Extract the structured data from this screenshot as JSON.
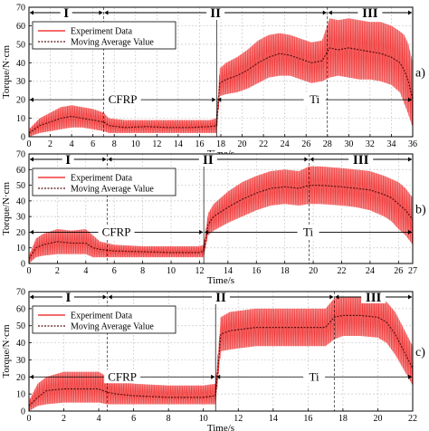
{
  "chart_data": [
    {
      "type": "line",
      "panel_label": "a)",
      "xlabel": "Time/s",
      "ylabel": "Torque/N·cm",
      "xlim": [
        0,
        36
      ],
      "ylim": [
        0,
        70
      ],
      "xticks": [
        0,
        2,
        4,
        6,
        8,
        10,
        12,
        14,
        16,
        18,
        20,
        22,
        24,
        26,
        28,
        30,
        32,
        34,
        36
      ],
      "yticks": [
        0,
        10,
        20,
        30,
        40,
        50,
        60,
        70
      ],
      "grid": true,
      "legend": {
        "position": "upper-left",
        "entries": [
          "Experiment Data",
          "Moving Average Value"
        ]
      },
      "stages": [
        {
          "label": "I",
          "from": 0,
          "to": 7
        },
        {
          "label": "II",
          "from": 7,
          "to": 28
        },
        {
          "label": "III",
          "from": 28,
          "to": 36
        }
      ],
      "materials": [
        {
          "label": "CFRP",
          "from": 0,
          "to": 17.6
        },
        {
          "label": "Ti",
          "from": 17.6,
          "to": 36
        }
      ],
      "series": [
        {
          "name": "Moving Average Value",
          "x": [
            0,
            1,
            2,
            3,
            4,
            5,
            6,
            7,
            7.5,
            9,
            11,
            13,
            15,
            17,
            17.6,
            17.9,
            18.5,
            19.5,
            20.5,
            21.5,
            22.5,
            23.5,
            24.5,
            25.5,
            26.5,
            27.5,
            28.2,
            29,
            30,
            31,
            32,
            33,
            34,
            34.8,
            35.2,
            35.6,
            36
          ],
          "y": [
            2,
            6,
            8,
            10,
            11,
            10,
            9,
            8,
            6,
            5,
            5.5,
            5,
            5,
            5.5,
            6,
            29,
            31,
            33,
            36,
            40,
            43,
            45,
            44,
            42,
            40,
            41,
            48,
            47,
            48,
            47,
            46,
            45,
            43,
            40,
            36,
            30,
            20
          ]
        },
        {
          "name": "Experiment Data",
          "x": [
            0,
            1,
            2,
            3,
            4,
            5,
            6,
            7,
            7.5,
            9,
            11,
            13,
            15,
            17,
            17.6,
            17.9,
            18.5,
            19.5,
            20.5,
            21.5,
            22.5,
            23.5,
            24.5,
            25.5,
            26.5,
            27.5,
            28.2,
            29,
            30,
            31,
            32,
            33,
            34,
            34.8,
            35.2,
            35.6,
            36
          ],
          "ymin": [
            0,
            2,
            3,
            4,
            5,
            5,
            4,
            3,
            2,
            2,
            2,
            2,
            2,
            2,
            2,
            22,
            23,
            24,
            26,
            29,
            32,
            33,
            33,
            31,
            29,
            30,
            32,
            33,
            32,
            31,
            31,
            30,
            28,
            24,
            18,
            12,
            5
          ],
          "ymax": [
            4,
            10,
            13,
            16,
            17,
            16,
            15,
            13,
            10,
            9,
            9,
            9,
            9,
            9,
            10,
            37,
            40,
            43,
            47,
            52,
            55,
            56,
            55,
            53,
            51,
            52,
            64,
            63,
            64,
            63,
            62,
            62,
            60,
            57,
            55,
            50,
            40
          ]
        }
      ]
    },
    {
      "type": "line",
      "panel_label": "b)",
      "xlabel": "Time/s",
      "ylabel": "Torque/N·cm",
      "xlim": [
        0,
        27
      ],
      "ylim": [
        0,
        70
      ],
      "xticks": [
        0,
        2,
        4,
        6,
        8,
        10,
        12,
        14,
        16,
        18,
        20,
        22,
        24,
        26,
        27
      ],
      "yticks": [
        0,
        10,
        20,
        30,
        40,
        50,
        60,
        70
      ],
      "grid": true,
      "legend": {
        "position": "upper-left",
        "entries": [
          "Experiment Data",
          "Moving Average Value"
        ]
      },
      "stages": [
        {
          "label": "I",
          "from": 0,
          "to": 5.5
        },
        {
          "label": "II",
          "from": 5.5,
          "to": 19.7
        },
        {
          "label": "III",
          "from": 19.7,
          "to": 27
        }
      ],
      "materials": [
        {
          "label": "CFRP",
          "from": 0,
          "to": 12.3
        },
        {
          "label": "Ti",
          "from": 12.3,
          "to": 27
        }
      ],
      "series": [
        {
          "name": "Moving Average Value",
          "x": [
            0,
            0.5,
            1,
            2,
            3,
            4,
            4.5,
            5,
            6,
            8,
            10,
            12,
            12.3,
            12.6,
            13,
            14,
            15,
            16,
            17,
            18,
            19,
            19.7,
            20.5,
            22,
            23,
            24,
            25,
            25.5,
            26,
            26.5,
            27
          ],
          "y": [
            3,
            10,
            12,
            14,
            13,
            13,
            10,
            9,
            8,
            7.5,
            7,
            7,
            8,
            25,
            30,
            36,
            41,
            45,
            48,
            49,
            48,
            50,
            50,
            49,
            48,
            47,
            44,
            42,
            38,
            34,
            28
          ]
        },
        {
          "name": "Experiment Data",
          "x": [
            0,
            0.5,
            1,
            2,
            3,
            4,
            4.5,
            5,
            6,
            8,
            10,
            12,
            12.3,
            12.6,
            13,
            14,
            15,
            16,
            17,
            18,
            19,
            19.7,
            20.5,
            22,
            23,
            24,
            25,
            25.5,
            26,
            26.5,
            27
          ],
          "ymin": [
            0,
            4,
            5,
            6,
            6,
            6,
            4,
            4,
            4,
            4,
            4,
            4,
            4,
            18,
            21,
            26,
            30,
            34,
            37,
            38,
            37,
            38,
            38,
            37,
            36,
            34,
            30,
            27,
            22,
            18,
            12
          ],
          "ymax": [
            5,
            16,
            19,
            22,
            21,
            22,
            18,
            14,
            12,
            11,
            11,
            11,
            12,
            32,
            38,
            46,
            52,
            56,
            59,
            60,
            59,
            62,
            62,
            61,
            60,
            59,
            56,
            54,
            52,
            48,
            42
          ]
        }
      ]
    },
    {
      "type": "line",
      "panel_label": "c)",
      "xlabel": "Time/s",
      "ylabel": "Torque/N·cm",
      "xlim": [
        0,
        22
      ],
      "ylim": [
        0,
        70
      ],
      "xticks": [
        0,
        2,
        4,
        6,
        8,
        10,
        12,
        14,
        16,
        18,
        20,
        22
      ],
      "yticks": [
        0,
        10,
        20,
        30,
        40,
        50,
        60,
        70
      ],
      "grid": true,
      "legend": {
        "position": "upper-left",
        "entries": [
          "Experiment Data",
          "Moving Average Value"
        ]
      },
      "stages": [
        {
          "label": "I",
          "from": 0,
          "to": 4.5
        },
        {
          "label": "II",
          "from": 4.5,
          "to": 17.5
        },
        {
          "label": "III",
          "from": 17.5,
          "to": 22
        }
      ],
      "materials": [
        {
          "label": "CFRP",
          "from": 0,
          "to": 10.7
        },
        {
          "label": "Ti",
          "from": 10.7,
          "to": 22
        }
      ],
      "series": [
        {
          "name": "Moving Average Value",
          "x": [
            0,
            0.5,
            1,
            2,
            3,
            4,
            4.5,
            5,
            6,
            8,
            10,
            10.7,
            11,
            11.5,
            13,
            15,
            17,
            17.5,
            18,
            19,
            20,
            20.5,
            21,
            21.5,
            22
          ],
          "y": [
            3,
            8,
            12,
            13,
            13,
            13,
            11,
            10,
            9,
            8,
            8,
            9,
            45,
            47,
            49,
            49,
            49,
            55,
            56,
            56,
            55,
            52,
            45,
            35,
            25
          ]
        },
        {
          "name": "Experiment Data",
          "x": [
            0,
            0.5,
            1,
            2,
            3,
            4,
            4.5,
            5,
            6,
            8,
            10,
            10.7,
            11,
            11.5,
            13,
            15,
            17,
            17.5,
            18,
            19,
            20,
            20.5,
            21,
            21.5,
            22
          ],
          "ymin": [
            0,
            3,
            4,
            5,
            5,
            5,
            4,
            4,
            4,
            4,
            4,
            4,
            35,
            36,
            38,
            38,
            38,
            42,
            44,
            44,
            43,
            40,
            33,
            24,
            15
          ],
          "ymax": [
            6,
            16,
            20,
            23,
            23,
            23,
            20,
            18,
            16,
            15,
            15,
            16,
            55,
            58,
            60,
            60,
            60,
            66,
            67,
            67,
            66,
            64,
            58,
            48,
            38
          ]
        }
      ]
    }
  ]
}
